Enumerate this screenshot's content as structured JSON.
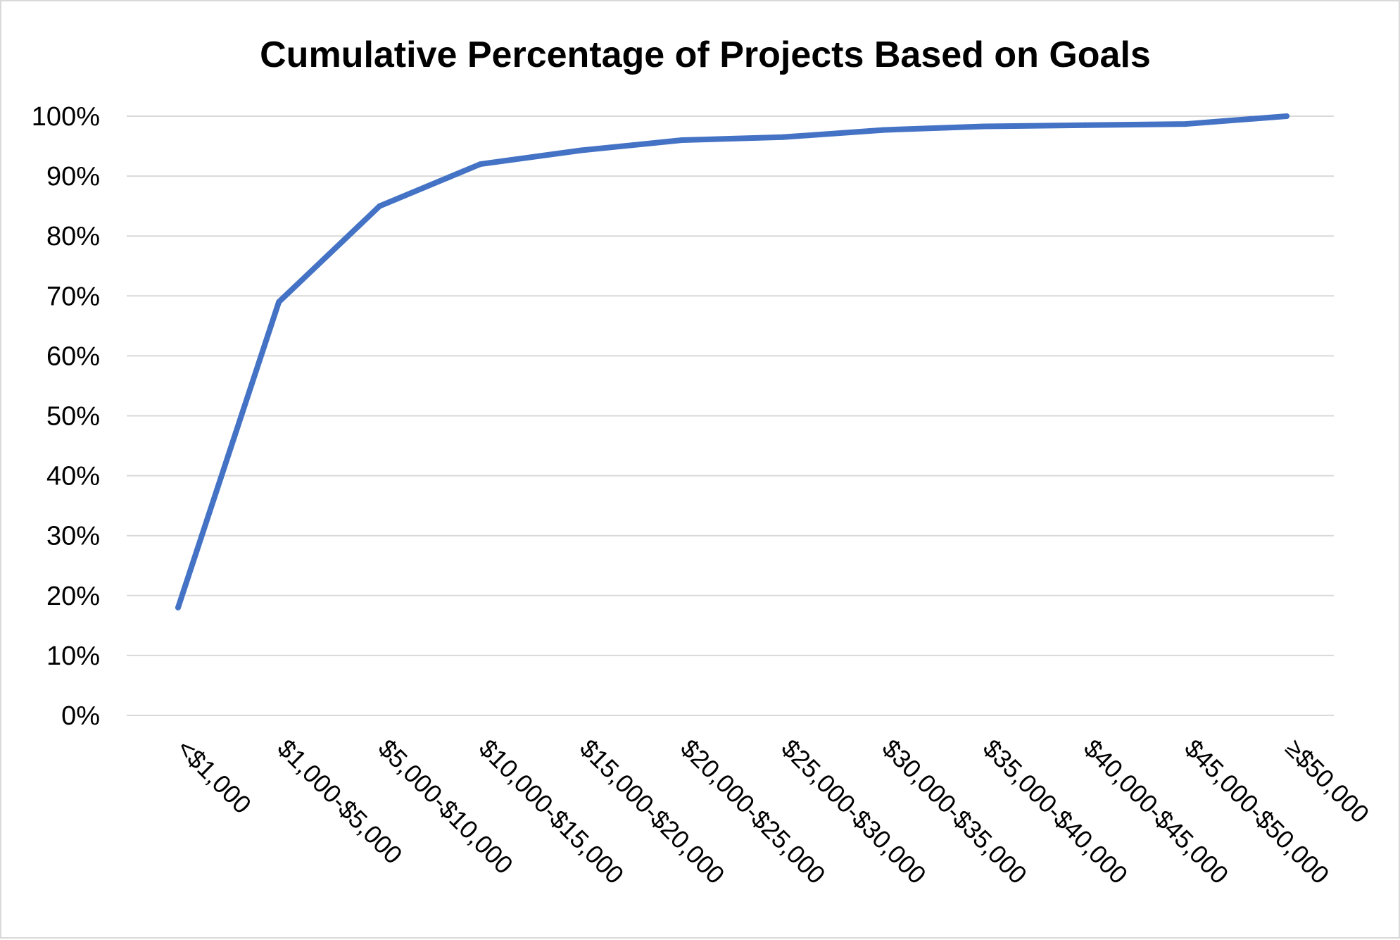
{
  "chart_data": {
    "type": "line",
    "title": "Cumulative Percentage of Projects Based on Goals",
    "xlabel": "",
    "ylabel": "",
    "categories": [
      "<$1,000",
      "$1,000-$5,000",
      "$5,000-$10,000",
      "$10,000-$15,000",
      "$15,000-$20,000",
      "$20,000-$25,000",
      "$25,000-$30,000",
      "$30,000-$35,000",
      "$35,000-$40,000",
      "$40,000-$45,000",
      "$45,000-$50,000",
      "≥$50,000"
    ],
    "series": [
      {
        "values": [
          18,
          69,
          85,
          92,
          94.3,
          96,
          96.5,
          97.7,
          98.3,
          98.5,
          98.7,
          100
        ]
      }
    ],
    "ylim": [
      0,
      100
    ],
    "yticks": [
      "0%",
      "10%",
      "20%",
      "30%",
      "40%",
      "50%",
      "60%",
      "70%",
      "80%",
      "90%",
      "100%"
    ],
    "grid": true,
    "legend": "none",
    "colors": {
      "series": "#4472c4",
      "grid": "#d9d9d9"
    }
  }
}
